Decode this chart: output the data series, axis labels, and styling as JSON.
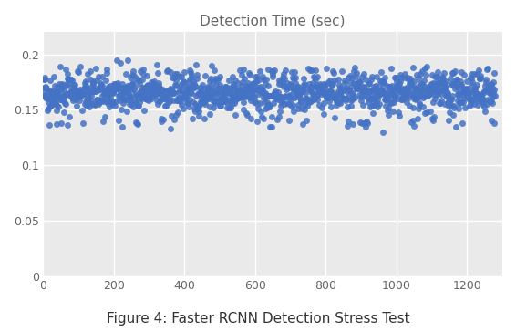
{
  "title": "Detection Time (sec)",
  "caption": "Figure 4: Faster RCNN Detection Stress Test",
  "x_min": 0,
  "x_max": 1300,
  "y_min": 0,
  "y_max": 0.22,
  "y_ticks": [
    0,
    0.05,
    0.1,
    0.15,
    0.2
  ],
  "x_ticks": [
    0,
    200,
    400,
    600,
    800,
    1000,
    1200
  ],
  "dot_color": "#4472c4",
  "dot_alpha": 0.85,
  "dot_size": 25,
  "n_points": 1280,
  "base_mean": 0.163,
  "base_std": 0.01,
  "seed": 42,
  "background_color": "#ffffff",
  "plot_bg_color": "#eaeaea",
  "grid_color": "#ffffff",
  "title_fontsize": 11,
  "caption_fontsize": 11,
  "tick_fontsize": 9,
  "tick_color": "#666666",
  "spine_color": "#aaaaaa"
}
